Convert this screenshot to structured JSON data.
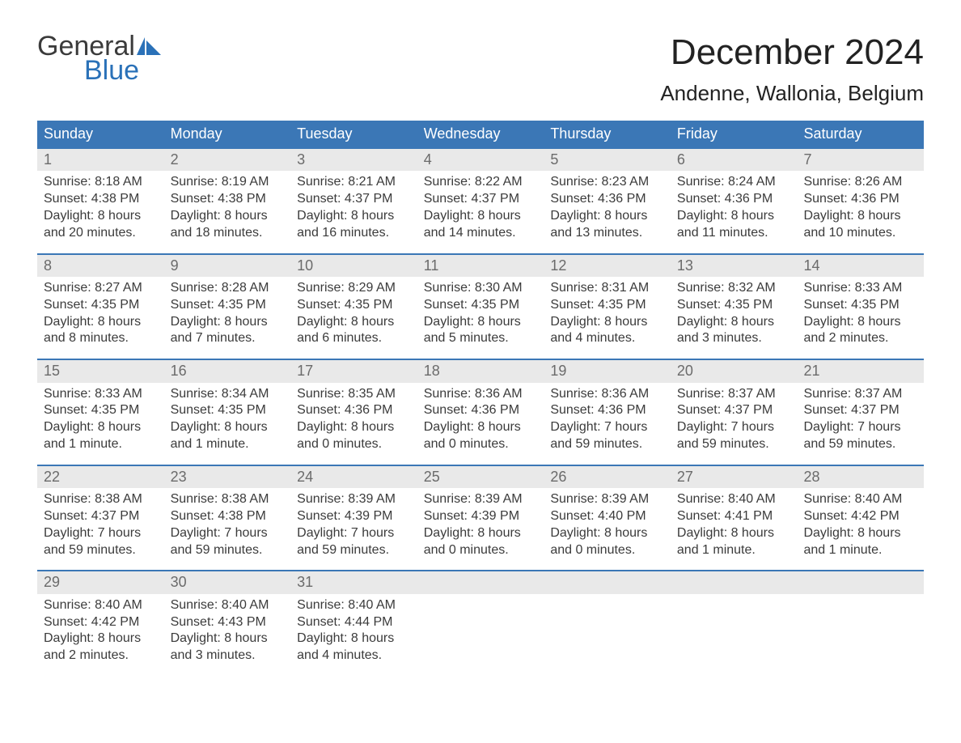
{
  "logo": {
    "word1": "General",
    "word2": "Blue",
    "icon_name": "flag-icon",
    "word1_color": "#3b3b3b",
    "word2_color": "#2a71b8",
    "icon_color": "#2a71b8"
  },
  "title": {
    "month": "December 2024",
    "location": "Andenne, Wallonia, Belgium"
  },
  "colors": {
    "header_bg": "#3b77b6",
    "header_text": "#ffffff",
    "week_border": "#3b77b6",
    "daynum_bg": "#e9e9e9",
    "daynum_color": "#6b6b6b",
    "body_text": "#3b3b3b",
    "page_bg": "#ffffff"
  },
  "weekdays": [
    "Sunday",
    "Monday",
    "Tuesday",
    "Wednesday",
    "Thursday",
    "Friday",
    "Saturday"
  ],
  "weeks": [
    [
      {
        "num": "1",
        "sunrise": "Sunrise: 8:18 AM",
        "sunset": "Sunset: 4:38 PM",
        "day1": "Daylight: 8 hours",
        "day2": "and 20 minutes."
      },
      {
        "num": "2",
        "sunrise": "Sunrise: 8:19 AM",
        "sunset": "Sunset: 4:38 PM",
        "day1": "Daylight: 8 hours",
        "day2": "and 18 minutes."
      },
      {
        "num": "3",
        "sunrise": "Sunrise: 8:21 AM",
        "sunset": "Sunset: 4:37 PM",
        "day1": "Daylight: 8 hours",
        "day2": "and 16 minutes."
      },
      {
        "num": "4",
        "sunrise": "Sunrise: 8:22 AM",
        "sunset": "Sunset: 4:37 PM",
        "day1": "Daylight: 8 hours",
        "day2": "and 14 minutes."
      },
      {
        "num": "5",
        "sunrise": "Sunrise: 8:23 AM",
        "sunset": "Sunset: 4:36 PM",
        "day1": "Daylight: 8 hours",
        "day2": "and 13 minutes."
      },
      {
        "num": "6",
        "sunrise": "Sunrise: 8:24 AM",
        "sunset": "Sunset: 4:36 PM",
        "day1": "Daylight: 8 hours",
        "day2": "and 11 minutes."
      },
      {
        "num": "7",
        "sunrise": "Sunrise: 8:26 AM",
        "sunset": "Sunset: 4:36 PM",
        "day1": "Daylight: 8 hours",
        "day2": "and 10 minutes."
      }
    ],
    [
      {
        "num": "8",
        "sunrise": "Sunrise: 8:27 AM",
        "sunset": "Sunset: 4:35 PM",
        "day1": "Daylight: 8 hours",
        "day2": "and 8 minutes."
      },
      {
        "num": "9",
        "sunrise": "Sunrise: 8:28 AM",
        "sunset": "Sunset: 4:35 PM",
        "day1": "Daylight: 8 hours",
        "day2": "and 7 minutes."
      },
      {
        "num": "10",
        "sunrise": "Sunrise: 8:29 AM",
        "sunset": "Sunset: 4:35 PM",
        "day1": "Daylight: 8 hours",
        "day2": "and 6 minutes."
      },
      {
        "num": "11",
        "sunrise": "Sunrise: 8:30 AM",
        "sunset": "Sunset: 4:35 PM",
        "day1": "Daylight: 8 hours",
        "day2": "and 5 minutes."
      },
      {
        "num": "12",
        "sunrise": "Sunrise: 8:31 AM",
        "sunset": "Sunset: 4:35 PM",
        "day1": "Daylight: 8 hours",
        "day2": "and 4 minutes."
      },
      {
        "num": "13",
        "sunrise": "Sunrise: 8:32 AM",
        "sunset": "Sunset: 4:35 PM",
        "day1": "Daylight: 8 hours",
        "day2": "and 3 minutes."
      },
      {
        "num": "14",
        "sunrise": "Sunrise: 8:33 AM",
        "sunset": "Sunset: 4:35 PM",
        "day1": "Daylight: 8 hours",
        "day2": "and 2 minutes."
      }
    ],
    [
      {
        "num": "15",
        "sunrise": "Sunrise: 8:33 AM",
        "sunset": "Sunset: 4:35 PM",
        "day1": "Daylight: 8 hours",
        "day2": "and 1 minute."
      },
      {
        "num": "16",
        "sunrise": "Sunrise: 8:34 AM",
        "sunset": "Sunset: 4:35 PM",
        "day1": "Daylight: 8 hours",
        "day2": "and 1 minute."
      },
      {
        "num": "17",
        "sunrise": "Sunrise: 8:35 AM",
        "sunset": "Sunset: 4:36 PM",
        "day1": "Daylight: 8 hours",
        "day2": "and 0 minutes."
      },
      {
        "num": "18",
        "sunrise": "Sunrise: 8:36 AM",
        "sunset": "Sunset: 4:36 PM",
        "day1": "Daylight: 8 hours",
        "day2": "and 0 minutes."
      },
      {
        "num": "19",
        "sunrise": "Sunrise: 8:36 AM",
        "sunset": "Sunset: 4:36 PM",
        "day1": "Daylight: 7 hours",
        "day2": "and 59 minutes."
      },
      {
        "num": "20",
        "sunrise": "Sunrise: 8:37 AM",
        "sunset": "Sunset: 4:37 PM",
        "day1": "Daylight: 7 hours",
        "day2": "and 59 minutes."
      },
      {
        "num": "21",
        "sunrise": "Sunrise: 8:37 AM",
        "sunset": "Sunset: 4:37 PM",
        "day1": "Daylight: 7 hours",
        "day2": "and 59 minutes."
      }
    ],
    [
      {
        "num": "22",
        "sunrise": "Sunrise: 8:38 AM",
        "sunset": "Sunset: 4:37 PM",
        "day1": "Daylight: 7 hours",
        "day2": "and 59 minutes."
      },
      {
        "num": "23",
        "sunrise": "Sunrise: 8:38 AM",
        "sunset": "Sunset: 4:38 PM",
        "day1": "Daylight: 7 hours",
        "day2": "and 59 minutes."
      },
      {
        "num": "24",
        "sunrise": "Sunrise: 8:39 AM",
        "sunset": "Sunset: 4:39 PM",
        "day1": "Daylight: 7 hours",
        "day2": "and 59 minutes."
      },
      {
        "num": "25",
        "sunrise": "Sunrise: 8:39 AM",
        "sunset": "Sunset: 4:39 PM",
        "day1": "Daylight: 8 hours",
        "day2": "and 0 minutes."
      },
      {
        "num": "26",
        "sunrise": "Sunrise: 8:39 AM",
        "sunset": "Sunset: 4:40 PM",
        "day1": "Daylight: 8 hours",
        "day2": "and 0 minutes."
      },
      {
        "num": "27",
        "sunrise": "Sunrise: 8:40 AM",
        "sunset": "Sunset: 4:41 PM",
        "day1": "Daylight: 8 hours",
        "day2": "and 1 minute."
      },
      {
        "num": "28",
        "sunrise": "Sunrise: 8:40 AM",
        "sunset": "Sunset: 4:42 PM",
        "day1": "Daylight: 8 hours",
        "day2": "and 1 minute."
      }
    ],
    [
      {
        "num": "29",
        "sunrise": "Sunrise: 8:40 AM",
        "sunset": "Sunset: 4:42 PM",
        "day1": "Daylight: 8 hours",
        "day2": "and 2 minutes."
      },
      {
        "num": "30",
        "sunrise": "Sunrise: 8:40 AM",
        "sunset": "Sunset: 4:43 PM",
        "day1": "Daylight: 8 hours",
        "day2": "and 3 minutes."
      },
      {
        "num": "31",
        "sunrise": "Sunrise: 8:40 AM",
        "sunset": "Sunset: 4:44 PM",
        "day1": "Daylight: 8 hours",
        "day2": "and 4 minutes."
      },
      {
        "empty": true
      },
      {
        "empty": true
      },
      {
        "empty": true
      },
      {
        "empty": true
      }
    ]
  ]
}
